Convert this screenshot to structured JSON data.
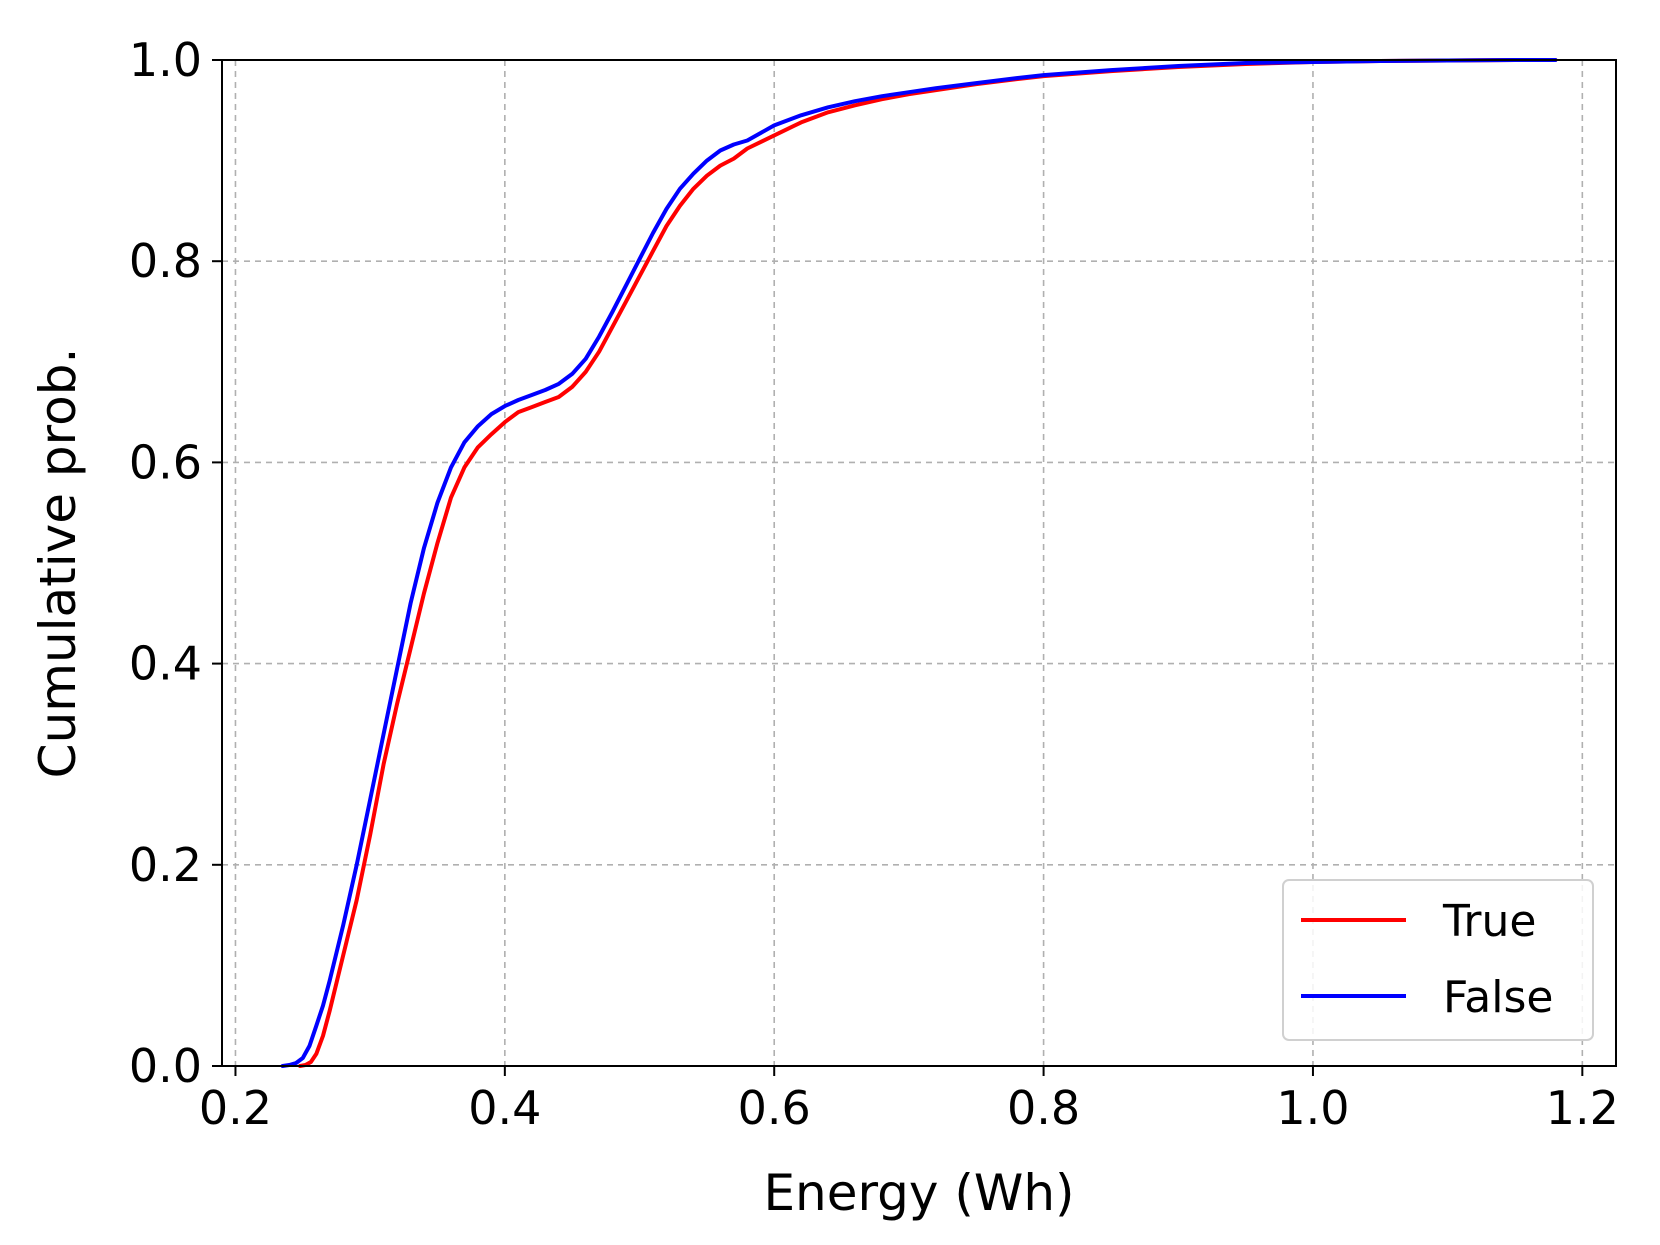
{
  "chart_data": {
    "type": "line",
    "title": "",
    "xlabel": "Energy (Wh)",
    "ylabel": "Cumulative prob.",
    "xlim": [
      0.19,
      1.225
    ],
    "ylim": [
      0.0,
      1.0
    ],
    "xticks": [
      0.2,
      0.4,
      0.6,
      0.8,
      1.0,
      1.2
    ],
    "xtick_labels": [
      "0.2",
      "0.4",
      "0.6",
      "0.8",
      "1.0",
      "1.2"
    ],
    "yticks": [
      0.0,
      0.2,
      0.4,
      0.6,
      0.8,
      1.0
    ],
    "ytick_labels": [
      "0.0",
      "0.2",
      "0.4",
      "0.6",
      "0.8",
      "1.0"
    ],
    "grid": true,
    "legend_position": "bottom-right",
    "series": [
      {
        "name": "True",
        "color": "#ff0000",
        "x": [
          0.248,
          0.252,
          0.256,
          0.26,
          0.265,
          0.27,
          0.28,
          0.29,
          0.3,
          0.31,
          0.32,
          0.33,
          0.34,
          0.35,
          0.36,
          0.37,
          0.38,
          0.39,
          0.4,
          0.41,
          0.42,
          0.43,
          0.44,
          0.45,
          0.46,
          0.47,
          0.48,
          0.49,
          0.5,
          0.51,
          0.52,
          0.53,
          0.54,
          0.55,
          0.56,
          0.57,
          0.58,
          0.6,
          0.62,
          0.64,
          0.66,
          0.68,
          0.7,
          0.72,
          0.75,
          0.78,
          0.8,
          0.85,
          0.9,
          0.95,
          1.0,
          1.05,
          1.1,
          1.15,
          1.18
        ],
        "values": [
          0.0,
          0.001,
          0.004,
          0.012,
          0.03,
          0.055,
          0.11,
          0.165,
          0.23,
          0.3,
          0.36,
          0.415,
          0.47,
          0.52,
          0.565,
          0.595,
          0.615,
          0.628,
          0.64,
          0.65,
          0.655,
          0.66,
          0.665,
          0.675,
          0.69,
          0.71,
          0.735,
          0.76,
          0.785,
          0.81,
          0.835,
          0.855,
          0.872,
          0.885,
          0.895,
          0.902,
          0.912,
          0.925,
          0.938,
          0.948,
          0.955,
          0.961,
          0.966,
          0.97,
          0.976,
          0.981,
          0.984,
          0.989,
          0.993,
          0.996,
          0.998,
          0.999,
          0.9995,
          1.0,
          1.0
        ]
      },
      {
        "name": "False",
        "color": "#0000ff",
        "x": [
          0.235,
          0.24,
          0.245,
          0.25,
          0.255,
          0.26,
          0.265,
          0.27,
          0.28,
          0.29,
          0.3,
          0.31,
          0.32,
          0.33,
          0.34,
          0.35,
          0.36,
          0.37,
          0.38,
          0.39,
          0.4,
          0.41,
          0.42,
          0.43,
          0.44,
          0.45,
          0.46,
          0.47,
          0.48,
          0.49,
          0.5,
          0.51,
          0.52,
          0.53,
          0.54,
          0.55,
          0.56,
          0.57,
          0.58,
          0.6,
          0.62,
          0.64,
          0.66,
          0.68,
          0.7,
          0.72,
          0.75,
          0.78,
          0.8,
          0.85,
          0.9,
          0.95,
          1.0,
          1.05,
          1.1,
          1.15,
          1.18
        ],
        "values": [
          0.0,
          0.001,
          0.003,
          0.008,
          0.02,
          0.04,
          0.06,
          0.085,
          0.14,
          0.2,
          0.265,
          0.33,
          0.395,
          0.46,
          0.515,
          0.56,
          0.595,
          0.62,
          0.636,
          0.648,
          0.656,
          0.662,
          0.667,
          0.672,
          0.678,
          0.688,
          0.703,
          0.725,
          0.75,
          0.776,
          0.802,
          0.828,
          0.852,
          0.872,
          0.887,
          0.9,
          0.91,
          0.916,
          0.92,
          0.935,
          0.945,
          0.953,
          0.959,
          0.964,
          0.968,
          0.972,
          0.977,
          0.982,
          0.985,
          0.99,
          0.994,
          0.997,
          0.998,
          0.999,
          0.9995,
          1.0,
          1.0
        ]
      }
    ]
  }
}
